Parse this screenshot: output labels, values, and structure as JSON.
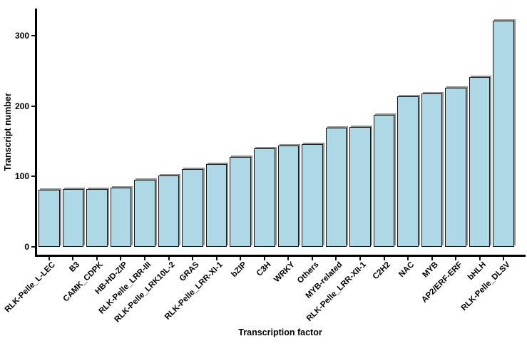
{
  "chart_data": {
    "type": "bar",
    "title": "",
    "xlabel": "Transcription factor",
    "ylabel": "Transcript number",
    "categories": [
      "RLK-Pelle_L-LEC",
      "B3",
      "CAMK_CDPK",
      "HB-HD-ZIP",
      "RLK-Pelle_LRR-III",
      "RLK-Pelle_LRK10L-2",
      "GRAS",
      "RLK-Pelle_LRR-XI-1",
      "bZIP",
      "C3H",
      "WRKY",
      "Others",
      "MYB-related",
      "RLK-Pelle_LRR-XII-1",
      "C2H2",
      "NAC",
      "MYB",
      "AP2/ERF-ERF",
      "bHLH",
      "RLK-Pelle_DLSV"
    ],
    "values": [
      81,
      82,
      82,
      84,
      95,
      101,
      111,
      118,
      128,
      140,
      144,
      146,
      169,
      170,
      188,
      214,
      218,
      226,
      241,
      322
    ],
    "yticks": [
      0,
      100,
      200,
      300
    ],
    "ylim": [
      0,
      340
    ],
    "grid": false,
    "legend": "none",
    "colors": {
      "bar_fill": "#aed8e5",
      "bar_border": "#161616",
      "bar_shadow": "#909090",
      "axis": "#000000",
      "text": "#000000",
      "background": "#ffffff"
    }
  }
}
